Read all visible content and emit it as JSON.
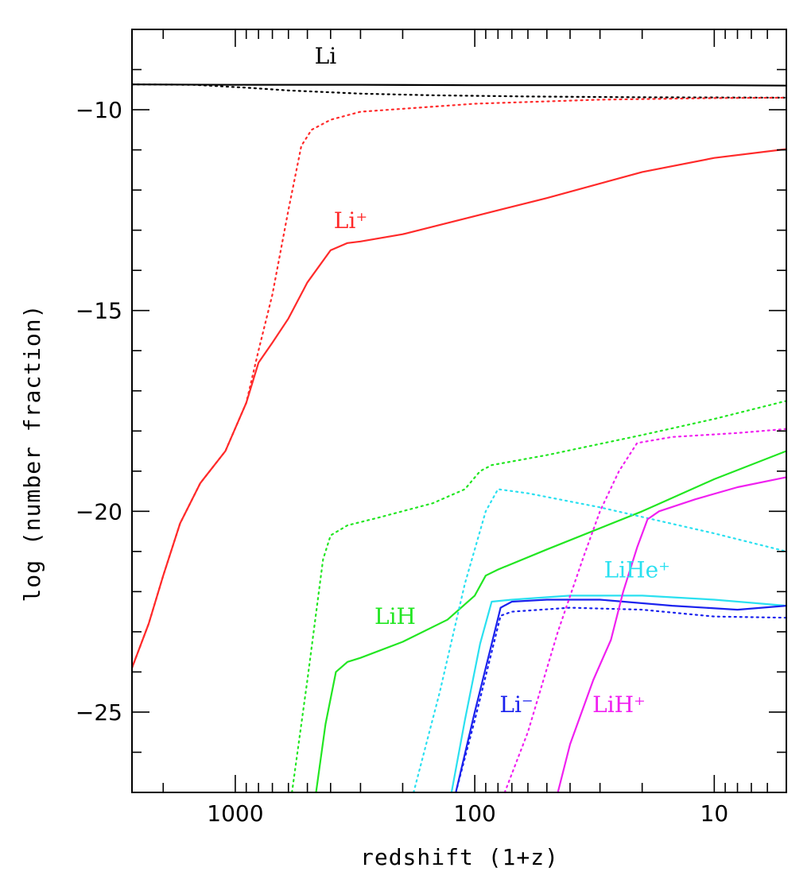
{
  "chart_data": {
    "type": "line",
    "title": "",
    "xlabel": "redshift (1+z)",
    "ylabel": "log (number fraction)",
    "x_scale": "log",
    "x_reversed": true,
    "xlim": [
      2700,
      5
    ],
    "ylim": [
      -27,
      -8
    ],
    "x_ticks": [
      1000,
      100,
      10
    ],
    "x_tick_labels": [
      "1000",
      "100",
      "10"
    ],
    "y_ticks": [
      -10,
      -15,
      -20,
      -25
    ],
    "y_tick_labels": [
      "−10",
      "−15",
      "−20",
      "−25"
    ],
    "series": [
      {
        "name": "Li",
        "label": "Li",
        "color": "#000000",
        "style": "solid",
        "points": [
          [
            2700,
            -9.37
          ],
          [
            1000,
            -9.38
          ],
          [
            300,
            -9.38
          ],
          [
            100,
            -9.39
          ],
          [
            30,
            -9.39
          ],
          [
            10,
            -9.39
          ],
          [
            5,
            -9.4
          ]
        ]
      },
      {
        "name": "Li-dotted",
        "label": "",
        "color": "#000000",
        "style": "dotted",
        "points": [
          [
            2700,
            -9.37
          ],
          [
            1500,
            -9.38
          ],
          [
            900,
            -9.45
          ],
          [
            600,
            -9.52
          ],
          [
            300,
            -9.6
          ],
          [
            150,
            -9.64
          ],
          [
            60,
            -9.67
          ],
          [
            20,
            -9.69
          ],
          [
            5,
            -9.7
          ]
        ]
      },
      {
        "name": "Li+",
        "label": "Li⁺",
        "color": "#ff2a2a",
        "style": "solid",
        "points": [
          [
            2700,
            -23.9
          ],
          [
            2300,
            -22.8
          ],
          [
            2000,
            -21.6
          ],
          [
            1700,
            -20.3
          ],
          [
            1400,
            -19.3
          ],
          [
            1100,
            -18.5
          ],
          [
            900,
            -17.3
          ],
          [
            800,
            -16.3
          ],
          [
            700,
            -15.8
          ],
          [
            600,
            -15.2
          ],
          [
            500,
            -14.3
          ],
          [
            400,
            -13.5
          ],
          [
            340,
            -13.32
          ],
          [
            300,
            -13.28
          ],
          [
            200,
            -13.1
          ],
          [
            100,
            -12.65
          ],
          [
            50,
            -12.2
          ],
          [
            20,
            -11.55
          ],
          [
            10,
            -11.2
          ],
          [
            5,
            -10.98
          ]
        ]
      },
      {
        "name": "Li+-dotted",
        "label": "",
        "color": "#ff2a2a",
        "style": "dotted",
        "points": [
          [
            2700,
            -23.9
          ],
          [
            2300,
            -22.8
          ],
          [
            2000,
            -21.6
          ],
          [
            1700,
            -20.3
          ],
          [
            1400,
            -19.3
          ],
          [
            1100,
            -18.5
          ],
          [
            900,
            -17.3
          ],
          [
            800,
            -16.0
          ],
          [
            700,
            -14.6
          ],
          [
            600,
            -12.5
          ],
          [
            530,
            -10.9
          ],
          [
            480,
            -10.5
          ],
          [
            400,
            -10.25
          ],
          [
            300,
            -10.05
          ],
          [
            100,
            -9.85
          ],
          [
            30,
            -9.75
          ],
          [
            10,
            -9.71
          ],
          [
            5,
            -9.7
          ]
        ]
      },
      {
        "name": "LiH",
        "label": "LiH",
        "color": "#22e622",
        "style": "solid",
        "points": [
          [
            460,
            -27.0
          ],
          [
            420,
            -25.3
          ],
          [
            380,
            -24.0
          ],
          [
            340,
            -23.75
          ],
          [
            300,
            -23.65
          ],
          [
            200,
            -23.25
          ],
          [
            130,
            -22.7
          ],
          [
            100,
            -22.1
          ],
          [
            90,
            -21.6
          ],
          [
            80,
            -21.45
          ],
          [
            50,
            -20.95
          ],
          [
            20,
            -20.0
          ],
          [
            10,
            -19.2
          ],
          [
            5,
            -18.5
          ]
        ]
      },
      {
        "name": "LiH-dotted",
        "label": "",
        "color": "#22e622",
        "style": "dotted",
        "points": [
          [
            580,
            -27.0
          ],
          [
            500,
            -24.2
          ],
          [
            430,
            -21.2
          ],
          [
            400,
            -20.6
          ],
          [
            340,
            -20.35
          ],
          [
            250,
            -20.15
          ],
          [
            150,
            -19.8
          ],
          [
            110,
            -19.45
          ],
          [
            95,
            -19.0
          ],
          [
            85,
            -18.85
          ],
          [
            50,
            -18.6
          ],
          [
            20,
            -18.1
          ],
          [
            10,
            -17.7
          ],
          [
            5,
            -17.25
          ]
        ]
      },
      {
        "name": "LiHe+",
        "label": "LiHe⁺",
        "color": "#2ae0f0",
        "style": "solid",
        "points": [
          [
            125,
            -27.0
          ],
          [
            110,
            -25.2
          ],
          [
            95,
            -23.3
          ],
          [
            85,
            -22.25
          ],
          [
            70,
            -22.2
          ],
          [
            40,
            -22.1
          ],
          [
            20,
            -22.1
          ],
          [
            10,
            -22.2
          ],
          [
            5,
            -22.35
          ]
        ]
      },
      {
        "name": "LiHe+-dotted",
        "label": "",
        "color": "#2ae0f0",
        "style": "dotted",
        "points": [
          [
            180,
            -27.0
          ],
          [
            140,
            -24.5
          ],
          [
            110,
            -21.8
          ],
          [
            90,
            -20.0
          ],
          [
            80,
            -19.45
          ],
          [
            60,
            -19.55
          ],
          [
            30,
            -19.9
          ],
          [
            10,
            -20.55
          ],
          [
            5,
            -21.0
          ]
        ]
      },
      {
        "name": "Li-",
        "label": "Li⁻",
        "color": "#1a22ee",
        "style": "solid",
        "points": [
          [
            120,
            -27.0
          ],
          [
            100,
            -25.0
          ],
          [
            85,
            -23.3
          ],
          [
            78,
            -22.4
          ],
          [
            70,
            -22.25
          ],
          [
            50,
            -22.2
          ],
          [
            30,
            -22.2
          ],
          [
            15,
            -22.35
          ],
          [
            8,
            -22.45
          ],
          [
            5,
            -22.35
          ]
        ]
      },
      {
        "name": "Li--dotted",
        "label": "",
        "color": "#1a22ee",
        "style": "dotted",
        "points": [
          [
            120,
            -27.0
          ],
          [
            100,
            -25.2
          ],
          [
            85,
            -23.5
          ],
          [
            78,
            -22.6
          ],
          [
            70,
            -22.5
          ],
          [
            40,
            -22.4
          ],
          [
            20,
            -22.45
          ],
          [
            10,
            -22.62
          ],
          [
            5,
            -22.65
          ]
        ]
      },
      {
        "name": "LiH+",
        "label": "LiH⁺",
        "color": "#f020f0",
        "style": "solid",
        "points": [
          [
            45,
            -27.0
          ],
          [
            40,
            -25.8
          ],
          [
            32,
            -24.2
          ],
          [
            27,
            -23.2
          ],
          [
            24,
            -22.0
          ],
          [
            21,
            -20.9
          ],
          [
            19,
            -20.2
          ],
          [
            17,
            -20.0
          ],
          [
            12,
            -19.7
          ],
          [
            8,
            -19.4
          ],
          [
            5,
            -19.15
          ]
        ]
      },
      {
        "name": "LiH+-dotted",
        "label": "",
        "color": "#f020f0",
        "style": "dotted",
        "points": [
          [
            75,
            -27.0
          ],
          [
            60,
            -25.5
          ],
          [
            45,
            -23.0
          ],
          [
            35,
            -21.1
          ],
          [
            30,
            -20.0
          ],
          [
            25,
            -19.0
          ],
          [
            21,
            -18.3
          ],
          [
            15,
            -18.15
          ],
          [
            8,
            -18.05
          ],
          [
            5,
            -17.95
          ]
        ]
      }
    ],
    "annotations": [
      {
        "text": "Li",
        "series": "Li",
        "x": 420,
        "y": -8.85
      },
      {
        "text": "Li⁺",
        "series": "Li+",
        "x": 330,
        "y": -12.95
      },
      {
        "text": "LiH",
        "series": "LiH",
        "x": 215,
        "y": -22.8
      },
      {
        "text": "LiHe⁺",
        "series": "LiHe+",
        "x": 21,
        "y": -21.65
      },
      {
        "text": "Li⁻",
        "series": "Li-",
        "x": 67,
        "y": -25.0
      },
      {
        "text": "LiH⁺",
        "series": "LiH+",
        "x": 25,
        "y": -25.0
      }
    ]
  }
}
